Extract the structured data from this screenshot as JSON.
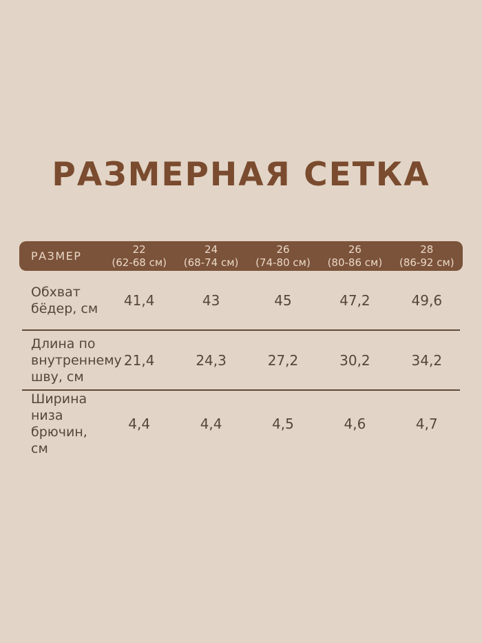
{
  "page": {
    "background_color": "#e2d5c7"
  },
  "title": {
    "text": "РАЗМЕРНАЯ СЕТКА",
    "color": "#7a4b2e"
  },
  "table": {
    "header": {
      "label": "РАЗМЕР",
      "background_color": "#7b523a",
      "text_color": "#ead9c6",
      "columns": [
        {
          "size": "22",
          "range": "(62-68 см)"
        },
        {
          "size": "24",
          "range": "(68-74 см)"
        },
        {
          "size": "26",
          "range": "(74-80 см)"
        },
        {
          "size": "26",
          "range": "(80-86 см)"
        },
        {
          "size": "28",
          "range": "(86-92 см)"
        }
      ]
    },
    "text_color": "#57453a",
    "divider_color": "#5d4839",
    "rows": [
      {
        "label": "Обхват бёдер, см",
        "values": [
          "41,4",
          "43",
          "45",
          "47,2",
          "49,6"
        ]
      },
      {
        "label": "Длина по внутреннему шву, см",
        "values": [
          "21,4",
          "24,3",
          "27,2",
          "30,2",
          "34,2"
        ]
      },
      {
        "label": "Ширина низа брючин, см",
        "values": [
          "4,4",
          "4,4",
          "4,5",
          "4,6",
          "4,7"
        ]
      }
    ]
  }
}
